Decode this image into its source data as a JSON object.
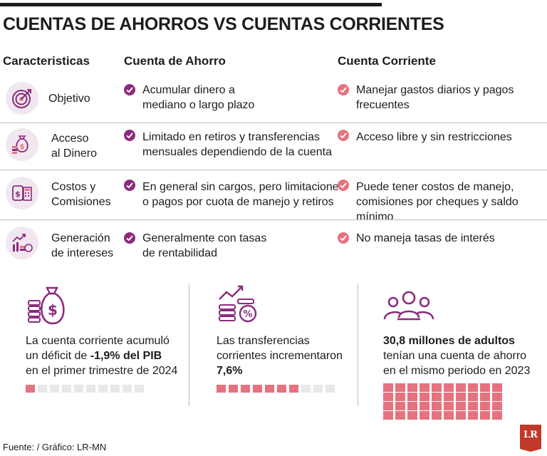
{
  "title": "CUENTAS DE AHORROS VS CUENTAS CORRIENTES",
  "headers": {
    "caracteristicas": "Caracteristicas",
    "ahorro": "Cuenta de Ahorro",
    "corriente": "Cuenta Corriente"
  },
  "rows": [
    {
      "icon": "target-icon",
      "label_1": "Objetivo",
      "label_2": "",
      "ahorro_1": "Acumular dinero a",
      "ahorro_2": "mediano o largo plazo",
      "corriente_1": "Manejar gastos diarios y pagos",
      "corriente_2": "frecuentes"
    },
    {
      "icon": "money-bag-icon",
      "label_1": "Acceso",
      "label_2": "al Dinero",
      "ahorro_1": "Limitado en retiros y transferencias",
      "ahorro_2": "mensuales dependiendo de la cuenta",
      "corriente_1": "Acceso libre y sin restricciones",
      "corriente_2": ""
    },
    {
      "icon": "calculator-money-icon",
      "label_1": "Costos y",
      "label_2": "Comisiones",
      "ahorro_1": "En general sin cargos, pero limitaciones",
      "ahorro_2": "o pagos por cuota de manejo y retiros",
      "corriente_1": "Puede tener costos de manejo,",
      "corriente_2": "comisiones por cheques y saldo mínimo"
    },
    {
      "icon": "growth-coins-icon",
      "label_1": "Generación",
      "label_2": "de intereses",
      "ahorro_1": "Generalmente con tasas",
      "ahorro_2": "de rentabilidad",
      "corriente_1": "No maneja tasas de interés",
      "corriente_2": ""
    }
  ],
  "stats": [
    {
      "icon": "money-bag-coins-icon",
      "line_1": "La cuenta corriente acumuló",
      "line_2_pre": "un déficit de ",
      "line_2_bold": "-1,9% del PIB",
      "line_3": "en el primer trimestre de 2024",
      "filled": 1,
      "total": 10
    },
    {
      "icon": "percent-coins-icon",
      "line_1": "Las transferencias",
      "line_2": "corrientes incrementaron",
      "line_3_bold": "7,6%",
      "filled": 7,
      "total": 10
    },
    {
      "icon": "people-icon",
      "line_1_bold": "30,8 millones de adultos",
      "line_2": "tenían una cuenta de ahorro",
      "line_3": "en el mismo periodo en 2023",
      "filled": 40,
      "total": 40
    }
  ],
  "footer": "Fuente: / Gráfico: LR-MN",
  "logo": "LR",
  "colors": {
    "purple": "#8a2b7d",
    "pink": "#e6727d",
    "icon_bg": "#f1e7f0",
    "empty_square": "#e8e8e8"
  }
}
